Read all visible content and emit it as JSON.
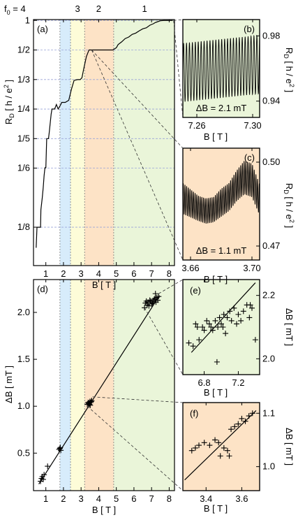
{
  "colors": {
    "band_blue": "#d7ecfb",
    "band_yellow": "#fdfcd8",
    "band_orange": "#fde3c6",
    "band_green": "#eaf5d9",
    "band_white": "#ffffff",
    "curve": "#000000",
    "guide_dash": "#9aa4d8"
  },
  "chart_data": [
    {
      "id": "a",
      "type": "line",
      "panel_label": "(a)",
      "xlabel": "B [ T ]",
      "ylabel": "R_D [ h / e^2 ]",
      "xlim": [
        0.3,
        8.3
      ],
      "yscale": "reciprocal",
      "x_ticks": [
        1,
        2,
        3,
        4,
        5,
        6,
        7,
        8
      ],
      "y_ticks": [
        {
          "value": 1.0,
          "label": "1"
        },
        {
          "value": 0.5,
          "label": "1/2"
        },
        {
          "value": 0.3333,
          "label": "1/3"
        },
        {
          "value": 0.25,
          "label": "1/4"
        },
        {
          "value": 0.2,
          "label": "1/5"
        },
        {
          "value": 0.1667,
          "label": "1/6"
        },
        {
          "value": 0.125,
          "label": "1/8"
        }
      ],
      "filling_label_prefix": "f",
      "filling_label_sub": "0",
      "filling_label_suffix": " = 4",
      "filling_factors": [
        {
          "label": "4",
          "x": 2.1
        },
        {
          "label": "3",
          "x": 2.8
        },
        {
          "label": "2",
          "x": 4.0
        },
        {
          "label": "1",
          "x": 6.6
        }
      ],
      "bands": [
        {
          "x0": 1.8,
          "x1": 2.4,
          "color": "band_blue"
        },
        {
          "x0": 2.4,
          "x1": 3.2,
          "color": "band_yellow"
        },
        {
          "x0": 3.2,
          "x1": 4.85,
          "color": "band_orange"
        },
        {
          "x0": 4.85,
          "x1": 8.3,
          "color": "band_green"
        }
      ],
      "series": [
        {
          "x": [
            0.45,
            0.5,
            0.6,
            0.7,
            0.72,
            0.8,
            0.85,
            0.9,
            0.95,
            1.0,
            1.05,
            1.15,
            1.2,
            1.3,
            1.35,
            1.5,
            1.6,
            1.7,
            1.85,
            1.9,
            2.1,
            2.3,
            2.45,
            2.6,
            2.8,
            2.95,
            3.05,
            3.15,
            3.3,
            3.45,
            3.6,
            3.8,
            4.2,
            4.5,
            4.8,
            4.9,
            5.0,
            5.1,
            5.3,
            5.5,
            5.7,
            5.9,
            6.1,
            6.3,
            6.5,
            6.7,
            6.9,
            7.0,
            7.1,
            7.2,
            7.35,
            7.5,
            7.7,
            8.0,
            8.2
          ],
          "y": [
            0.115,
            0.125,
            0.125,
            0.125,
            0.135,
            0.143,
            0.15,
            0.16,
            0.167,
            0.167,
            0.2,
            0.2,
            0.21,
            0.24,
            0.25,
            0.25,
            0.26,
            0.25,
            0.26,
            0.265,
            0.265,
            0.27,
            0.3,
            0.33,
            0.333,
            0.333,
            0.34,
            0.38,
            0.45,
            0.5,
            0.5,
            0.5,
            0.5,
            0.5,
            0.5,
            0.51,
            0.52,
            0.55,
            0.58,
            0.62,
            0.64,
            0.68,
            0.7,
            0.74,
            0.78,
            0.8,
            0.86,
            0.88,
            0.9,
            0.93,
            0.96,
            0.99,
            1.0,
            1.0,
            1.0
          ]
        }
      ]
    },
    {
      "id": "b",
      "type": "line",
      "panel_label": "(b)",
      "xlabel": "B [ T ]",
      "ylabel": "R_D [ h / e^2 ]",
      "xlim": [
        7.25,
        7.305
      ],
      "ylim": [
        0.93,
        0.99
      ],
      "x_ticks": [
        7.26,
        7.3
      ],
      "y_ticks": [
        0.94,
        0.98
      ],
      "annotation": "ΔB = 2.1 mT",
      "period_mT": 2.1,
      "oscillation": {
        "mean_start": 0.9575,
        "mean_end": 0.9625,
        "amplitude": 0.018
      }
    },
    {
      "id": "c",
      "type": "line",
      "panel_label": "(c)",
      "xlabel": "B [ T ]",
      "ylabel": "R_D [ h / e^2 ]",
      "xlim": [
        3.655,
        3.705
      ],
      "ylim": [
        0.465,
        0.505
      ],
      "x_ticks": [
        3.66,
        3.7
      ],
      "y_ticks": [
        0.47,
        0.5
      ],
      "annotation": "ΔB = 1.1 mT",
      "period_mT": 1.1,
      "envelope": {
        "x": [
          3.655,
          3.665,
          3.67,
          3.675,
          3.68,
          3.685,
          3.69,
          3.695,
          3.7,
          3.705
        ],
        "mean": [
          0.487,
          0.4835,
          0.4825,
          0.483,
          0.4855,
          0.4875,
          0.4915,
          0.4945,
          0.4935,
          0.4865
        ],
        "amp": [
          0.0055,
          0.0045,
          0.0045,
          0.0045,
          0.005,
          0.005,
          0.0055,
          0.006,
          0.006,
          0.0055
        ]
      }
    },
    {
      "id": "d",
      "type": "scatter",
      "panel_label": "(d)",
      "xlabel": "B [ T ]",
      "ylabel": "ΔB [ mT ]",
      "xlim": [
        0.3,
        8.3
      ],
      "ylim": [
        0.1,
        2.35
      ],
      "x_ticks": [
        1,
        2,
        3,
        4,
        5,
        6,
        7,
        8
      ],
      "y_ticks": [
        0.5,
        1.0,
        1.5,
        2.0
      ],
      "bands": [
        {
          "x0": 1.8,
          "x1": 2.4,
          "color": "band_blue"
        },
        {
          "x0": 2.4,
          "x1": 3.2,
          "color": "band_yellow"
        },
        {
          "x0": 3.2,
          "x1": 4.85,
          "color": "band_orange"
        },
        {
          "x0": 4.85,
          "x1": 8.3,
          "color": "band_green"
        }
      ],
      "fit": {
        "x": [
          0.6,
          7.45
        ],
        "y": [
          0.17,
          2.18
        ]
      },
      "points": {
        "x": [
          0.7,
          0.75,
          0.8,
          0.85,
          0.9,
          1.1,
          1.75,
          1.8,
          1.85,
          1.82,
          3.35,
          3.4,
          3.45,
          3.5,
          3.55,
          3.6,
          3.48,
          3.52,
          3.42,
          3.58,
          6.6,
          6.65,
          6.7,
          6.75,
          6.8,
          6.9,
          7.0,
          7.05,
          7.1,
          7.15,
          7.2,
          7.25,
          7.3,
          7.35,
          7.4,
          6.85,
          6.95,
          7.22
        ],
        "y": [
          0.2,
          0.23,
          0.25,
          0.22,
          0.27,
          0.36,
          0.54,
          0.55,
          0.53,
          0.56,
          1.02,
          1.04,
          1.03,
          1.05,
          1.04,
          1.06,
          1.02,
          1.01,
          1.03,
          1.05,
          2.05,
          2.1,
          2.12,
          2.08,
          2.11,
          2.13,
          2.09,
          2.1,
          2.12,
          2.14,
          2.15,
          2.11,
          2.16,
          2.13,
          2.17,
          2.07,
          2.12,
          2.2
        ]
      }
    },
    {
      "id": "e",
      "type": "scatter",
      "panel_label": "(e)",
      "xlabel": "B [ T ]",
      "ylabel": "ΔB [ mT ]",
      "xlim": [
        6.55,
        7.45
      ],
      "ylim": [
        1.95,
        2.25
      ],
      "x_ticks": [
        6.8,
        7.2
      ],
      "y_ticks": [
        2.0,
        2.2
      ],
      "fit": {
        "x": [
          6.65,
          7.4
        ],
        "y": [
          2.02,
          2.24
        ]
      },
      "points": {
        "x": [
          6.62,
          6.67,
          6.7,
          6.74,
          6.78,
          6.8,
          6.83,
          6.86,
          6.88,
          6.9,
          6.93,
          6.96,
          6.98,
          7.0,
          7.03,
          7.05,
          7.07,
          7.1,
          7.12,
          7.15,
          7.18,
          7.2,
          7.23,
          7.26,
          7.3,
          7.33,
          7.36,
          7.4,
          6.95,
          7.02,
          7.34,
          6.72
        ],
        "y": [
          2.05,
          2.04,
          2.11,
          2.06,
          2.1,
          2.09,
          2.12,
          2.11,
          2.1,
          2.09,
          2.12,
          2.1,
          2.13,
          2.11,
          2.14,
          2.08,
          2.13,
          2.15,
          2.12,
          2.16,
          2.11,
          2.14,
          2.12,
          2.15,
          2.17,
          2.13,
          2.16,
          2.06,
          1.99,
          2.1,
          2.17,
          2.1
        ]
      }
    },
    {
      "id": "f",
      "type": "scatter",
      "panel_label": "(f)",
      "xlabel": "B [ T ]",
      "ylabel": "ΔB [ mT ]",
      "xlim": [
        3.27,
        3.7
      ],
      "ylim": [
        0.955,
        1.12
      ],
      "x_ticks": [
        3.4,
        3.6
      ],
      "y_ticks": [
        1.0,
        1.1
      ],
      "fit": {
        "x": [
          3.28,
          3.68
        ],
        "y": [
          0.975,
          1.105
        ]
      },
      "points": {
        "x": [
          3.32,
          3.34,
          3.36,
          3.39,
          3.42,
          3.45,
          3.47,
          3.5,
          3.52,
          3.54,
          3.56,
          3.58,
          3.6,
          3.62,
          3.64,
          3.66,
          3.48,
          3.53
        ],
        "y": [
          1.03,
          1.035,
          1.04,
          1.045,
          1.04,
          1.05,
          1.045,
          1.035,
          1.03,
          1.07,
          1.075,
          1.08,
          1.09,
          1.085,
          1.095,
          1.1,
          1.02,
          1.02
        ]
      }
    }
  ]
}
